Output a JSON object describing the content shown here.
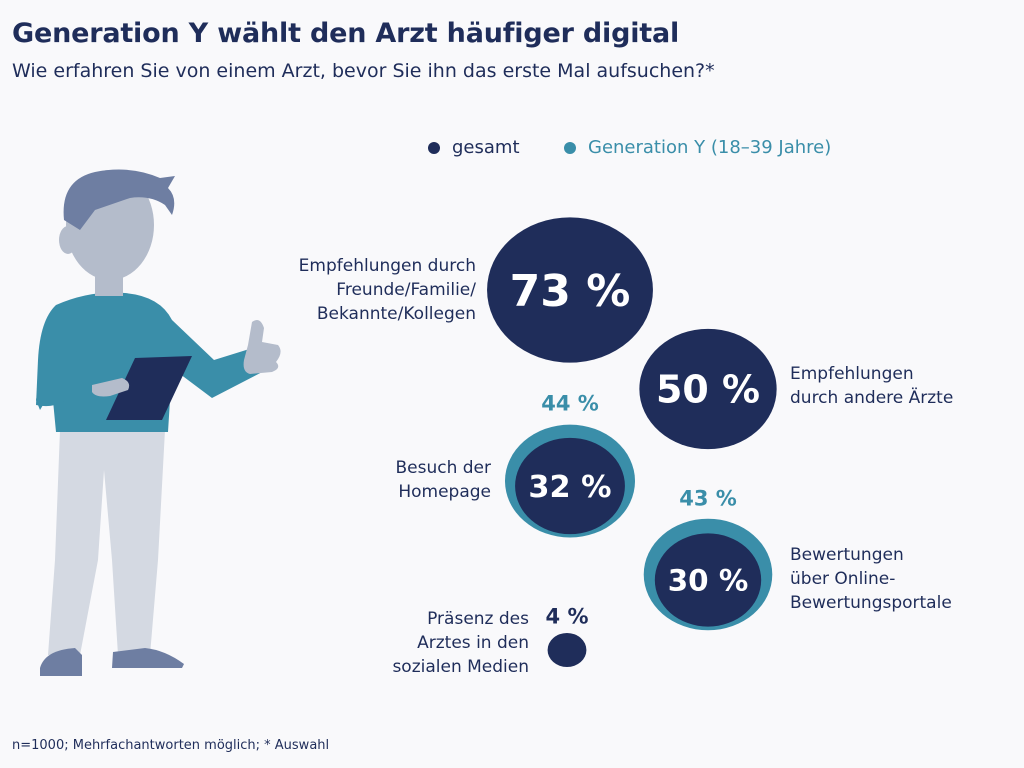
{
  "title": "Generation Y wählt den Arzt häufiger digital",
  "subtitle": "Wie erfahren Sie von einem Arzt, bevor Sie ihn das erste Mal aufsuchen?*",
  "footnote": "n=1000; Mehrfachantworten möglich; * Auswahl",
  "colors": {
    "gesamt": "#1f2d5a",
    "generation_y": "#3a8ea9",
    "figure_shirt": "#3a8ea9",
    "figure_skin": "#b4bccb",
    "figure_pants": "#d4d9e2",
    "figure_hair": "#6e7ea2"
  },
  "chart_data": {
    "type": "bubble",
    "legend": [
      {
        "name": "gesamt",
        "color": "#1f2d5a"
      },
      {
        "name": "Generation Y (18–39 Jahre)",
        "color": "#3a8ea9"
      }
    ],
    "categories": [
      "Empfehlungen durch Freunde/Familie/ Bekannte/Kollegen",
      "Empfehlungen durch andere Ärzte",
      "Besuch der Homepage",
      "Bewertungen über Online- Bewertungsportale",
      "Präsenz des Arztes in den sozialen Medien"
    ],
    "series": [
      {
        "name": "gesamt",
        "values": [
          73,
          50,
          32,
          30,
          4
        ],
        "labels": [
          "73 %",
          "50 %",
          "32 %",
          "30 %",
          "4 %"
        ]
      },
      {
        "name": "Generation Y (18–39 Jahre)",
        "values": [
          null,
          null,
          44,
          43,
          null
        ],
        "labels": [
          "",
          "",
          "44 %",
          "43 %",
          ""
        ]
      }
    ]
  },
  "labels": {
    "c1": [
      "Empfehlungen durch",
      "Freunde/Familie/",
      "Bekannte/Kollegen"
    ],
    "c2": [
      "Empfehlungen",
      "durch andere Ärzte"
    ],
    "c3": [
      "Besuch der",
      "Homepage"
    ],
    "c4": [
      "Bewertungen",
      "über Online-",
      "Bewertungsportale"
    ],
    "c5": [
      "Präsenz des",
      "Arztes in den",
      "sozialen Medien"
    ]
  }
}
